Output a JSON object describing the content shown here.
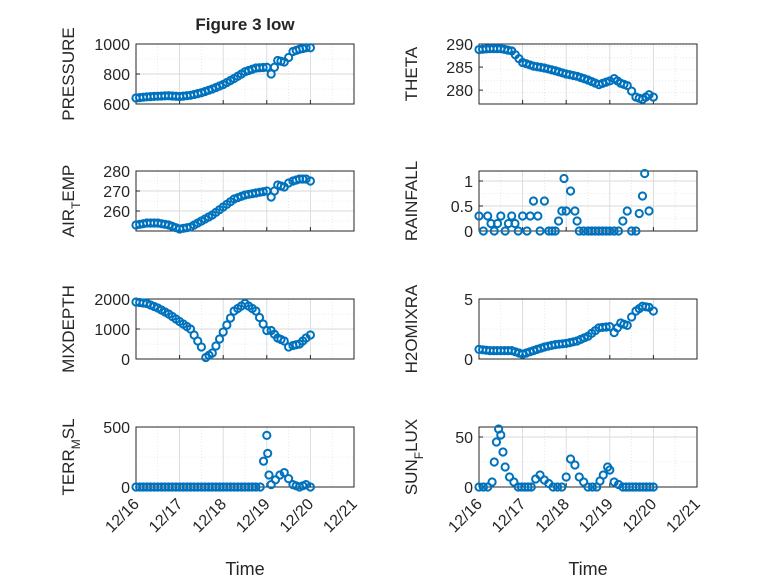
{
  "figure": {
    "title": "Figure 3 low",
    "xlabel": "Time",
    "xticks": [
      "12/16",
      "12/17",
      "12/18",
      "12/19",
      "12/20",
      "12/21"
    ]
  },
  "colors": {
    "marker": "#0072bd",
    "grid": "#d9d9d9",
    "axis": "#262626"
  },
  "chart_data": [
    {
      "type": "scatter",
      "ylabel": "PRESSURE",
      "ylabel_sub": "",
      "ylabel_tail": "",
      "xlim": [
        16,
        21
      ],
      "ylim": [
        600,
        1000
      ],
      "yticks": [
        600,
        800,
        1000
      ],
      "x": [
        16.0,
        16.25,
        16.5,
        16.75,
        17.0,
        17.25,
        17.5,
        17.75,
        18.0,
        18.25,
        18.5,
        18.75,
        19.0,
        19.1,
        19.25,
        19.4,
        19.5,
        19.6,
        19.75,
        19.9,
        20.0
      ],
      "y": [
        640,
        648,
        652,
        655,
        650,
        658,
        675,
        700,
        730,
        770,
        815,
        840,
        845,
        800,
        890,
        880,
        910,
        950,
        965,
        975,
        975
      ]
    },
    {
      "type": "scatter",
      "ylabel": "THETA",
      "ylabel_sub": "",
      "ylabel_tail": "",
      "xlim": [
        16,
        21
      ],
      "ylim": [
        277,
        290
      ],
      "yticks": [
        280,
        285,
        290
      ],
      "x": [
        16.0,
        16.25,
        16.5,
        16.75,
        17.0,
        17.25,
        17.5,
        17.75,
        18.0,
        18.25,
        18.5,
        18.75,
        19.0,
        19.1,
        19.25,
        19.4,
        19.5,
        19.6,
        19.75,
        19.9,
        20.0
      ],
      "y": [
        288.8,
        289.0,
        289.0,
        288.5,
        286.0,
        285.2,
        284.8,
        284.2,
        283.5,
        283.0,
        282.2,
        281.2,
        282.0,
        282.5,
        281.5,
        281.0,
        279.8,
        278.5,
        278.0,
        279.0,
        278.5
      ]
    },
    {
      "type": "scatter",
      "ylabel": "AIR",
      "ylabel_sub": "T",
      "ylabel_tail": "EMP",
      "xlim": [
        16,
        21
      ],
      "ylim": [
        250,
        280
      ],
      "yticks": [
        260,
        270,
        280
      ],
      "x": [
        16.0,
        16.25,
        16.5,
        16.75,
        17.0,
        17.25,
        17.5,
        17.75,
        18.0,
        18.25,
        18.5,
        18.75,
        19.0,
        19.1,
        19.25,
        19.4,
        19.5,
        19.6,
        19.75,
        19.9,
        20.0
      ],
      "y": [
        253,
        254,
        254,
        253,
        251,
        252,
        255,
        258,
        262,
        266,
        268,
        269,
        270,
        267,
        273,
        272,
        274,
        275,
        276,
        276,
        275
      ]
    },
    {
      "type": "scatter",
      "ylabel": "RAINFALL",
      "ylabel_sub": "",
      "ylabel_tail": "",
      "xlim": [
        16,
        21
      ],
      "ylim": [
        0,
        1.2
      ],
      "yticks": [
        0,
        0.5,
        1
      ],
      "ytick_labels": [
        "0",
        "0.5",
        "1"
      ],
      "x": [
        16.0,
        16.1,
        16.2,
        16.35,
        16.5,
        16.6,
        16.75,
        16.9,
        17.0,
        17.1,
        17.25,
        17.35,
        17.4,
        17.5,
        17.6,
        17.75,
        17.9,
        17.95,
        18.0,
        18.1,
        18.2,
        18.25,
        18.3,
        18.5,
        18.75,
        19.0,
        19.2,
        19.4,
        19.5,
        19.6,
        19.75,
        19.8,
        19.9
      ],
      "y": [
        0.3,
        0.0,
        0.3,
        0.0,
        0.3,
        0.0,
        0.3,
        0.0,
        0.3,
        0.0,
        0.6,
        0.3,
        0.0,
        0.6,
        0.0,
        0.0,
        0.4,
        1.05,
        0.4,
        0.8,
        0.4,
        0.2,
        0.0,
        0.0,
        0.0,
        0.0,
        0.0,
        0.4,
        0.0,
        0.0,
        0.7,
        1.15,
        0.4
      ]
    },
    {
      "type": "scatter",
      "ylabel": "MIXDEPTH",
      "ylabel_sub": "",
      "ylabel_tail": "",
      "xlim": [
        16,
        21
      ],
      "ylim": [
        0,
        2000
      ],
      "yticks": [
        0,
        1000,
        2000
      ],
      "x": [
        16.0,
        16.25,
        16.5,
        16.75,
        17.0,
        17.25,
        17.5,
        17.6,
        17.75,
        18.0,
        18.25,
        18.5,
        18.75,
        19.0,
        19.1,
        19.25,
        19.4,
        19.5,
        19.6,
        19.75,
        19.9,
        20.0
      ],
      "y": [
        1900,
        1850,
        1700,
        1500,
        1250,
        1000,
        400,
        50,
        200,
        900,
        1600,
        1850,
        1600,
        950,
        950,
        700,
        600,
        400,
        450,
        500,
        700,
        800
      ]
    },
    {
      "type": "scatter",
      "ylabel": "H2OMIXRA",
      "ylabel_sub": "",
      "ylabel_tail": "",
      "xlim": [
        16,
        21
      ],
      "ylim": [
        0,
        5
      ],
      "yticks": [
        0,
        5
      ],
      "x": [
        16.0,
        16.25,
        16.5,
        16.75,
        17.0,
        17.25,
        17.5,
        17.75,
        18.0,
        18.25,
        18.5,
        18.75,
        19.0,
        19.1,
        19.25,
        19.4,
        19.5,
        19.6,
        19.75,
        19.9,
        20.0
      ],
      "y": [
        0.8,
        0.7,
        0.7,
        0.7,
        0.4,
        0.7,
        1.0,
        1.2,
        1.3,
        1.5,
        1.9,
        2.6,
        2.7,
        2.2,
        3.0,
        2.8,
        3.5,
        4.0,
        4.4,
        4.3,
        4.0
      ]
    },
    {
      "type": "scatter",
      "ylabel": "TERR",
      "ylabel_sub": "M",
      "ylabel_tail": "SL",
      "xlim": [
        16,
        21
      ],
      "ylim": [
        0,
        500
      ],
      "yticks": [
        0,
        500
      ],
      "x": [
        16.0,
        16.25,
        16.5,
        16.75,
        17.0,
        17.25,
        17.5,
        17.75,
        18.0,
        18.25,
        18.5,
        18.75,
        18.85,
        19.0,
        19.02,
        19.05,
        19.1,
        19.2,
        19.3,
        19.4,
        19.5,
        19.6,
        19.75,
        19.9,
        20.0
      ],
      "y": [
        0,
        0,
        0,
        0,
        0,
        0,
        0,
        0,
        0,
        0,
        0,
        0,
        0,
        430,
        280,
        100,
        20,
        60,
        100,
        120,
        70,
        20,
        0,
        20,
        0
      ]
    },
    {
      "type": "scatter",
      "ylabel": "SUN",
      "ylabel_sub": "F",
      "ylabel_tail": "LUX",
      "xlim": [
        16,
        21
      ],
      "ylim": [
        0,
        60
      ],
      "yticks": [
        0,
        50
      ],
      "x": [
        16.0,
        16.1,
        16.2,
        16.3,
        16.35,
        16.4,
        16.45,
        16.5,
        16.55,
        16.6,
        16.7,
        16.9,
        17.2,
        17.3,
        17.4,
        17.5,
        17.7,
        17.9,
        18.0,
        18.1,
        18.2,
        18.3,
        18.5,
        18.7,
        18.85,
        18.95,
        19.0,
        19.1,
        19.3,
        19.6,
        20.0
      ],
      "y": [
        0,
        0,
        0,
        5,
        25,
        45,
        58,
        52,
        35,
        20,
        10,
        0,
        0,
        8,
        12,
        7,
        0,
        0,
        10,
        28,
        22,
        10,
        0,
        0,
        12,
        20,
        17,
        5,
        0,
        0,
        0
      ]
    }
  ]
}
